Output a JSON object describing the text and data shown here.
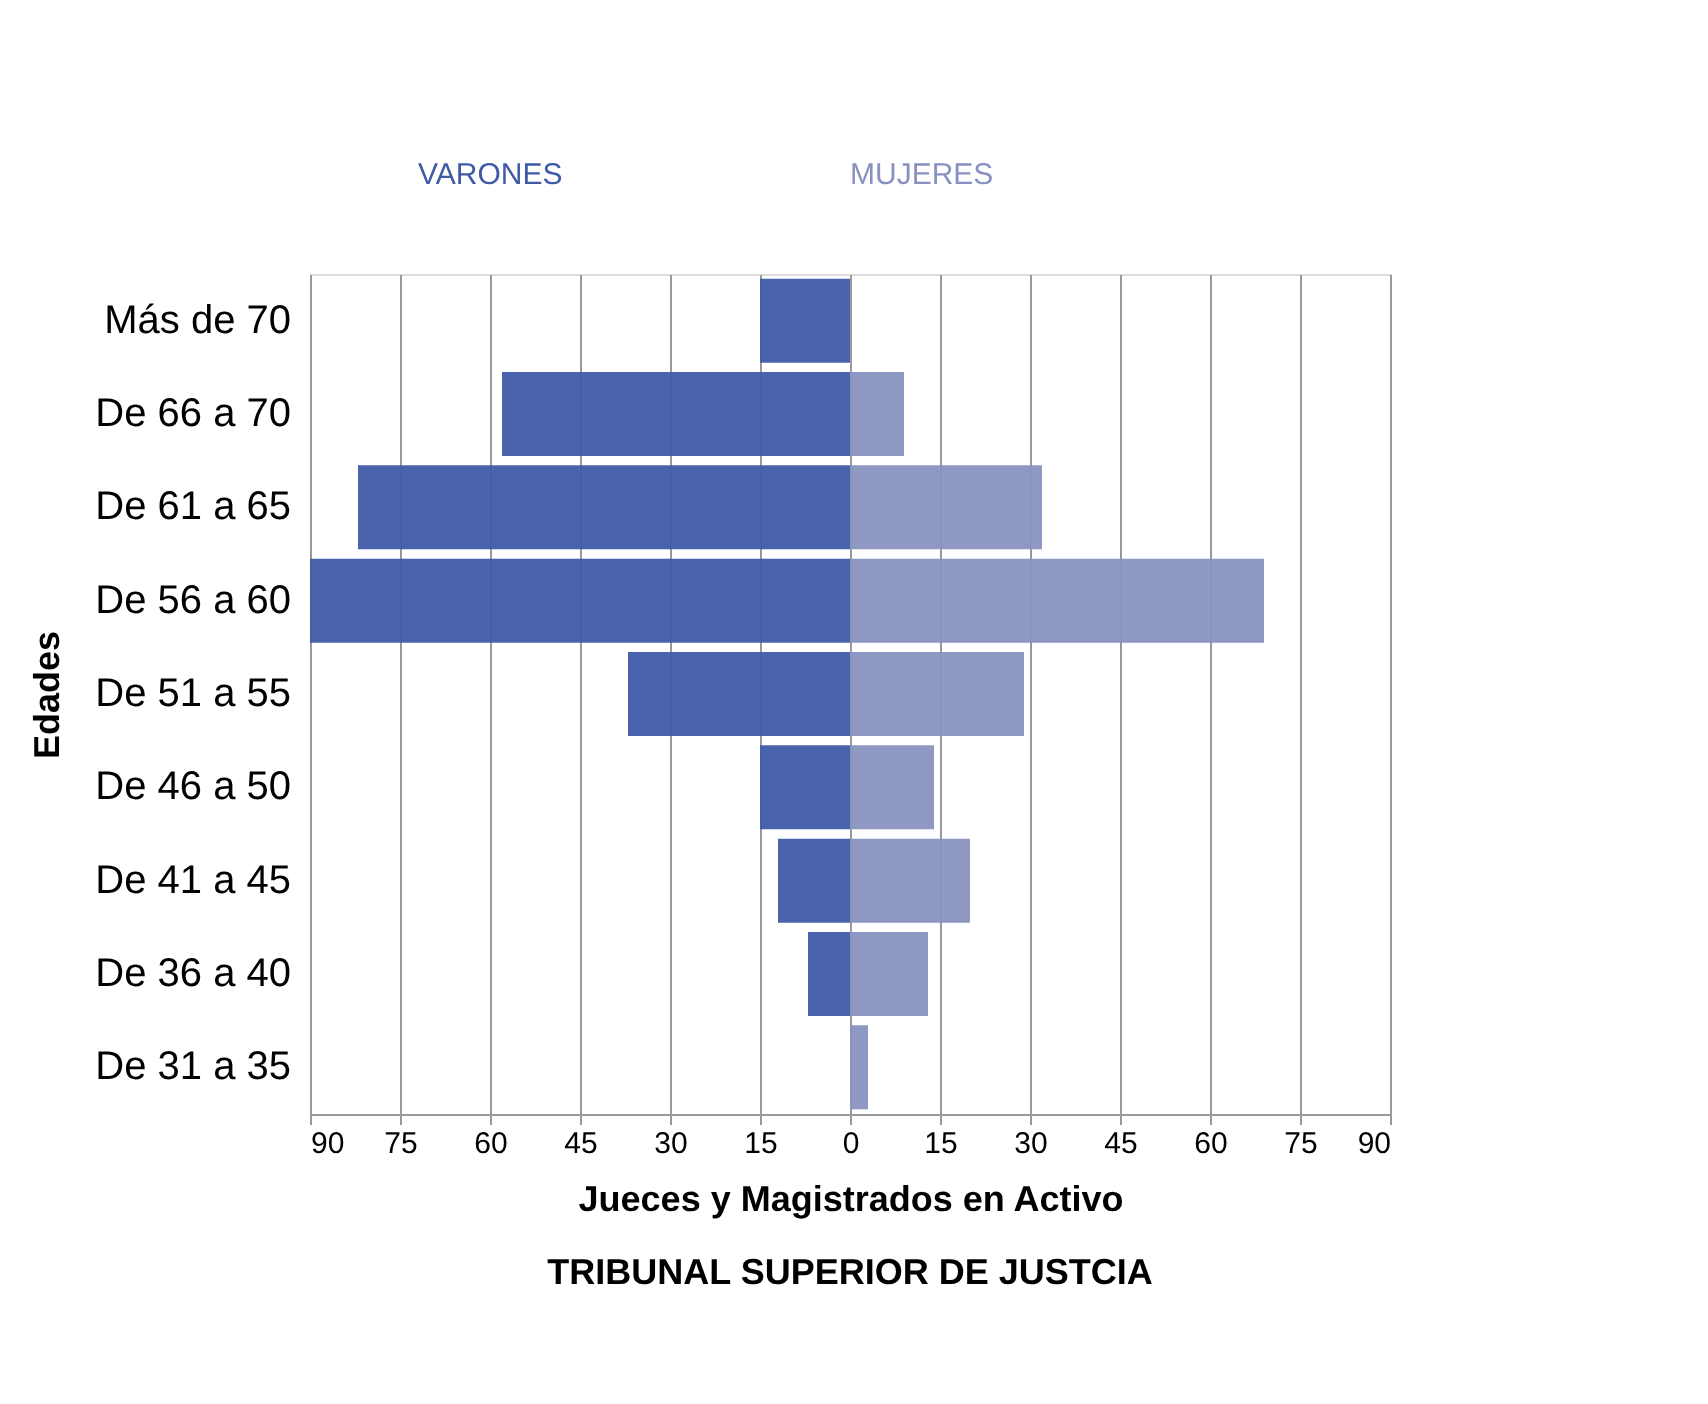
{
  "chart_data": {
    "type": "bar",
    "orientation": "horizontal",
    "xlabel": "Jueces y Magistrados   en Activo",
    "ylabel": "Edades",
    "annotations": [
      "TRIBUNAL SUPERIOR DE JUSTCIA"
    ],
    "categories": [
      "Más de 70",
      "De 66 a 70",
      "De 61 a 65",
      "De 56 a 60",
      "De 51 a 55",
      "De 46 a 50",
      "De 41 a 45",
      "De 36 a 40",
      "De 31 a 35"
    ],
    "series": [
      {
        "name": "VARONES",
        "color": "#3f5ba8",
        "values": [
          -15,
          -58,
          -82,
          -90,
          -37,
          -15,
          -12,
          -7,
          0
        ]
      },
      {
        "name": "MUJERES",
        "color": "#8892c0",
        "values": [
          0,
          9,
          32,
          69,
          29,
          14,
          20,
          13,
          3
        ]
      }
    ],
    "xlim": [
      -90,
      90
    ],
    "xticks": [
      {
        "value": -90,
        "label": "90"
      },
      {
        "value": -75,
        "label": "75"
      },
      {
        "value": -60,
        "label": "60"
      },
      {
        "value": -45,
        "label": "45"
      },
      {
        "value": -30,
        "label": "30"
      },
      {
        "value": -15,
        "label": "15"
      },
      0,
      15,
      30,
      45,
      60,
      75,
      90
    ],
    "grid": "x",
    "legend": "top"
  }
}
